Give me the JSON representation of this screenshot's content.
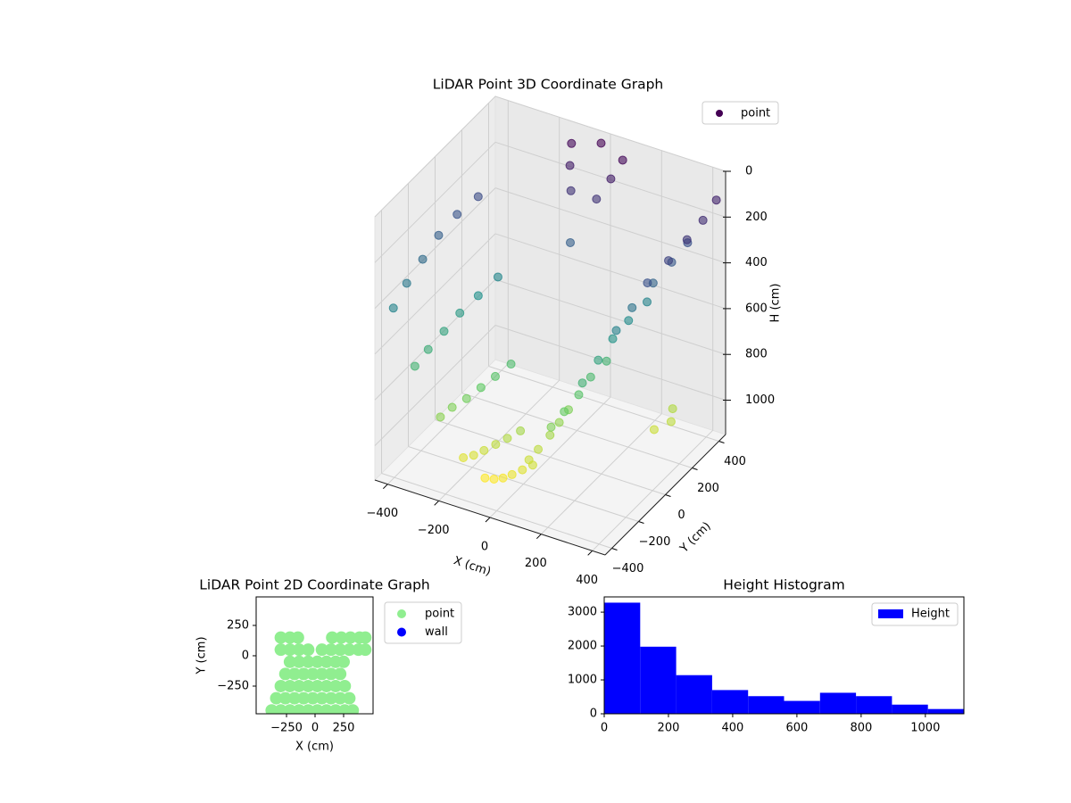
{
  "chart_data": [
    {
      "type": "scatter3d",
      "title": "LiDAR Point 3D Coordinate Graph",
      "xlabel": "X (cm)",
      "ylabel": "Y (cm)",
      "zlabel": "H (cm)",
      "xlim": [
        -450,
        450
      ],
      "ylim": [
        -450,
        450
      ],
      "zlim": [
        1150,
        0
      ],
      "xticks": [
        {
          "value": -400,
          "label": "−400"
        },
        {
          "value": -200,
          "label": "−200"
        },
        0,
        200,
        400
      ],
      "yticks": [
        {
          "value": -400,
          "label": "−400"
        },
        {
          "value": -200,
          "label": "−200"
        },
        0,
        200,
        400
      ],
      "zticks": [
        0,
        200,
        400,
        600,
        800,
        1000
      ],
      "grid": true,
      "legend": "upper right",
      "colormap": [
        "#440154",
        "#3b528b",
        "#21918c",
        "#5ec962",
        "#fde725"
      ],
      "series": [
        {
          "name": "point",
          "x": [
            -430,
            -330,
            -220,
            -120,
            -30,
            -430,
            -320,
            -200,
            -90,
            0,
            -420,
            -300,
            -170,
            -60,
            30,
            -410,
            -280,
            -140,
            -30,
            60,
            -390,
            -250,
            -110,
            0,
            90,
            -360,
            -220,
            -80,
            30,
            120,
            440,
            380,
            300,
            220,
            150,
            440,
            370,
            280,
            200,
            140,
            430,
            350,
            260,
            190,
            130,
            410,
            320,
            240,
            170,
            110,
            380,
            300,
            220,
            150,
            100,
            -100,
            0,
            100,
            -50,
            50,
            0,
            -80,
            80,
            420,
            400,
            380
          ],
          "y": [
            -350,
            -380,
            -400,
            -420,
            -430,
            -250,
            -300,
            -350,
            -400,
            -420,
            -150,
            -220,
            -300,
            -380,
            -410,
            -50,
            -140,
            -250,
            -350,
            -400,
            50,
            -60,
            -200,
            -320,
            -380,
            150,
            30,
            -140,
            -280,
            -360,
            400,
            300,
            150,
            0,
            -150,
            300,
            200,
            50,
            -80,
            -200,
            200,
            100,
            -30,
            -150,
            -250,
            100,
            0,
            -100,
            -220,
            -300,
            0,
            -80,
            -180,
            -280,
            -350,
            350,
            380,
            350,
            250,
            250,
            150,
            300,
            300,
            100,
            150,
            50
          ],
          "h": [
            450,
            650,
            820,
            950,
            1000,
            400,
            620,
            800,
            940,
            1000,
            350,
            580,
            780,
            920,
            990,
            300,
            540,
            750,
            900,
            970,
            260,
            500,
            720,
            880,
            950,
            230,
            460,
            690,
            860,
            930,
            100,
            250,
            450,
            650,
            800,
            130,
            280,
            480,
            680,
            830,
            160,
            320,
            520,
            720,
            860,
            200,
            380,
            580,
            760,
            900,
            250,
            440,
            640,
            800,
            920,
            20,
            0,
            20,
            150,
            150,
            300,
            80,
            80,
            900,
            880,
            920
          ]
        }
      ]
    },
    {
      "type": "scatter",
      "title": "LiDAR Point 2D Coordinate Graph",
      "xlabel": "X (cm)",
      "ylabel": "Y (cm)",
      "xlim": [
        -516,
        508
      ],
      "ylim": [
        -478,
        485
      ],
      "xticks": [
        {
          "value": -250,
          "label": "−250"
        },
        0,
        250
      ],
      "yticks": [
        {
          "value": -250,
          "label": "−250"
        },
        0,
        250
      ],
      "legend": "outside right",
      "series": [
        {
          "name": "point",
          "color": "#90ee90",
          "x": [
            -380,
            -300,
            -220,
            -140,
            -60,
            20,
            100,
            180,
            260,
            330,
            -340,
            -260,
            -180,
            -100,
            -20,
            60,
            140,
            220,
            300,
            -300,
            -220,
            -140,
            -60,
            20,
            100,
            180,
            260,
            -260,
            -180,
            -100,
            -20,
            60,
            140,
            220,
            -220,
            -140,
            -60,
            20,
            100,
            180,
            250,
            -300,
            -220,
            -140,
            -60,
            60,
            140,
            220,
            300,
            380,
            440,
            -300,
            -220,
            -150,
            150,
            230,
            310,
            390,
            440
          ],
          "y": [
            -450,
            -450,
            -450,
            -450,
            -450,
            -450,
            -450,
            -450,
            -450,
            -450,
            -350,
            -350,
            -350,
            -350,
            -350,
            -350,
            -350,
            -350,
            -350,
            -250,
            -250,
            -250,
            -250,
            -250,
            -250,
            -250,
            -250,
            -150,
            -150,
            -150,
            -150,
            -150,
            -150,
            -150,
            -50,
            -50,
            -50,
            -50,
            -50,
            -50,
            -50,
            50,
            50,
            50,
            50,
            50,
            50,
            50,
            50,
            50,
            50,
            150,
            150,
            150,
            150,
            150,
            150,
            150,
            150
          ]
        },
        {
          "name": "wall",
          "color": "#0000ff",
          "x": [],
          "y": []
        }
      ]
    },
    {
      "type": "histogram",
      "title": "Height Histogram",
      "xlim": [
        0,
        1120
      ],
      "ylim": [
        0,
        3450
      ],
      "xticks": [
        0,
        200,
        400,
        600,
        800,
        1000
      ],
      "yticks": [
        0,
        1000,
        2000,
        3000
      ],
      "legend": "upper right",
      "bins": [
        0,
        112,
        224,
        336,
        448,
        560,
        672,
        784,
        896,
        1008,
        1120
      ],
      "series": [
        {
          "name": "Height",
          "color": "#0000ff",
          "values": [
            3280,
            1980,
            1140,
            700,
            520,
            380,
            620,
            520,
            270,
            140
          ]
        }
      ]
    }
  ]
}
